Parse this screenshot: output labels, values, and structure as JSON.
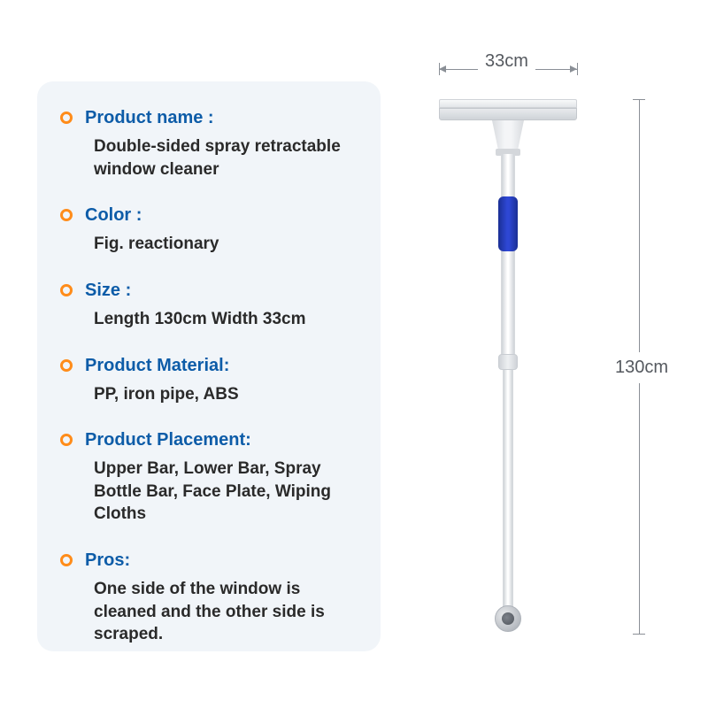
{
  "specs": [
    {
      "label": "Product name :",
      "value": "Double-sided spray retractable window cleaner"
    },
    {
      "label": "Color :",
      "value": "Fig. reactionary"
    },
    {
      "label": "Size :",
      "value": "Length 130cm Width 33cm"
    },
    {
      "label": "Product Material:",
      "value": "PP, iron pipe, ABS"
    },
    {
      "label": "Product Placement:",
      "value": "Upper Bar, Lower Bar, Spray Bottle Bar, Face Plate, Wiping Cloths"
    },
    {
      "label": "Pros:",
      "value": "One side of the window is cleaned and the other side is scraped."
    }
  ],
  "dimensions": {
    "width_label": "33cm",
    "height_label": "130cm"
  },
  "colors": {
    "card_bg": "#f1f5f9",
    "label_color": "#0d5ca8",
    "value_color": "#2a2a2a",
    "bullet_color": "#ff8c1a",
    "dim_line_color": "#8a8f96",
    "dim_text_color": "#55595f",
    "grip_blue": "#2e47d4"
  }
}
